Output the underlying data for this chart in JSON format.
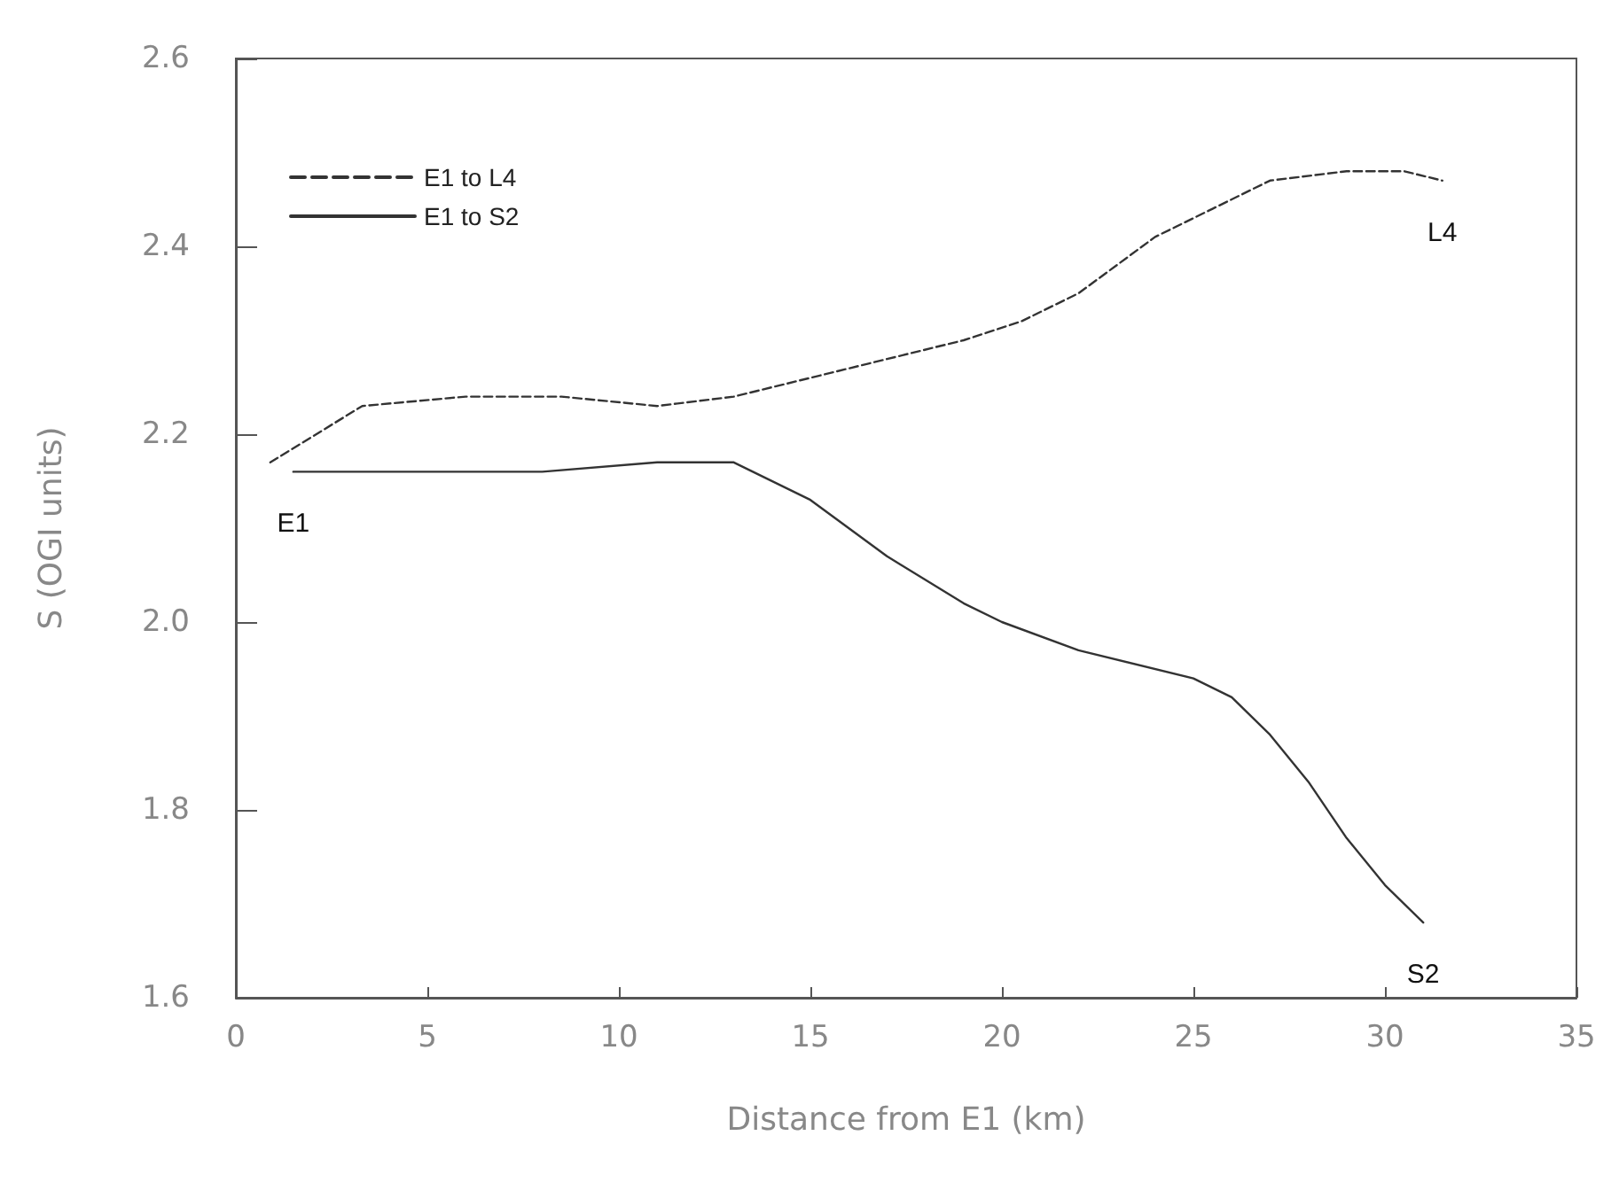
{
  "chart_data": {
    "type": "line",
    "xlabel": "Distance from E1 (km)",
    "ylabel": "S (OGI units)",
    "xlim": [
      0,
      35
    ],
    "xticks": [
      0,
      5,
      10,
      15,
      20,
      25,
      30,
      35
    ],
    "ylim": [
      1.6,
      2.6
    ],
    "yticks": [
      1.6,
      1.8,
      {
        "value": 2,
        "label": "2.0"
      },
      2.2,
      2.4,
      2.6
    ],
    "grid": false,
    "legend": "top left",
    "marker": "none",
    "series": [
      {
        "name": "E1 to L4",
        "color": "#333333",
        "line_style": "dashed",
        "x": [
          0.9,
          3.3,
          6,
          8.5,
          11,
          13,
          15,
          17,
          19,
          20.5,
          22,
          24,
          25.5,
          27,
          29,
          30.5,
          31.5
        ],
        "values": [
          2.17,
          2.23,
          2.24,
          2.24,
          2.23,
          2.24,
          2.26,
          2.28,
          2.3,
          2.32,
          2.35,
          2.41,
          2.44,
          2.47,
          2.48,
          2.48,
          2.47
        ]
      },
      {
        "name": "E1 to S2",
        "color": "#333333",
        "line_style": "solid",
        "x": [
          1.5,
          5,
          8,
          11,
          13,
          15,
          17,
          19,
          20,
          22,
          25,
          26,
          27,
          28,
          29,
          30,
          31
        ],
        "values": [
          2.16,
          2.16,
          2.16,
          2.17,
          2.17,
          2.13,
          2.07,
          2.02,
          2,
          1.97,
          1.94,
          1.92,
          1.88,
          1.83,
          1.77,
          1.72,
          1.68
        ]
      }
    ],
    "annotations": [
      {
        "text": "E1",
        "x": 1.5,
        "y": 2.16
      },
      {
        "text": "L4",
        "x": 31.5,
        "y": 2.47
      },
      {
        "text": "S2",
        "x": 31,
        "y": 1.68
      }
    ]
  }
}
